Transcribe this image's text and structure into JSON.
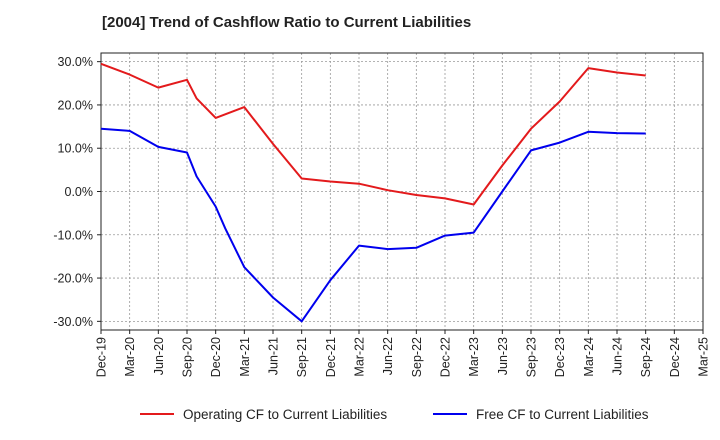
{
  "chart_data": {
    "type": "line",
    "title": "[2004]  Trend of Cashflow Ratio to Current Liabilities",
    "xlabel": "",
    "ylabel": "",
    "ylim": [
      -32,
      32
    ],
    "y_ticks": [
      30,
      20,
      10,
      0,
      -10,
      -20,
      -30
    ],
    "y_tick_labels": [
      "30.0%",
      "20.0%",
      "10.0%",
      "0.0%",
      "-10.0%",
      "-20.0%",
      "-30.0%"
    ],
    "x_tick_labels": [
      "Dec-19",
      "Mar-20",
      "Jun-20",
      "Sep-20",
      "Dec-20",
      "Mar-21",
      "Jun-21",
      "Sep-21",
      "Dec-21",
      "Mar-22",
      "Jun-22",
      "Sep-22",
      "Dec-22",
      "Mar-23",
      "Jun-23",
      "Sep-23",
      "Dec-23",
      "Mar-24",
      "Jun-24",
      "Sep-24",
      "Dec-24",
      "Mar-25"
    ],
    "grid": true,
    "legend_position": "bottom",
    "series": [
      {
        "name": "Operating CF to Current Liabilities",
        "color": "#e31a1c",
        "points": [
          {
            "x": "Dec-19",
            "y": 29.5
          },
          {
            "x": "Mar-20",
            "y": 27.0
          },
          {
            "x": "Jun-20",
            "y": 24.0
          },
          {
            "x": "Sep-20",
            "y": 25.8
          },
          {
            "x": "Oct-20",
            "y": 21.5
          },
          {
            "x": "Dec-20",
            "y": 17.0
          },
          {
            "x": "Mar-21",
            "y": 19.5
          },
          {
            "x": "Jun-21",
            "y": 11.0
          },
          {
            "x": "Sep-21",
            "y": 3.0
          },
          {
            "x": "Dec-21",
            "y": 2.3
          },
          {
            "x": "Mar-22",
            "y": 1.8
          },
          {
            "x": "Jun-22",
            "y": 0.3
          },
          {
            "x": "Sep-22",
            "y": -0.8
          },
          {
            "x": "Dec-22",
            "y": -1.6
          },
          {
            "x": "Mar-23",
            "y": -3.0
          },
          {
            "x": "Jun-23",
            "y": 6.0
          },
          {
            "x": "Sep-23",
            "y": 14.5
          },
          {
            "x": "Dec-23",
            "y": 20.8
          },
          {
            "x": "Mar-24",
            "y": 28.5
          },
          {
            "x": "Jun-24",
            "y": 27.5
          },
          {
            "x": "Sep-24",
            "y": 26.8
          }
        ]
      },
      {
        "name": "Free CF to Current Liabilities",
        "color": "#0000ee",
        "points": [
          {
            "x": "Dec-19",
            "y": 14.5
          },
          {
            "x": "Mar-20",
            "y": 14.0
          },
          {
            "x": "Jun-20",
            "y": 10.3
          },
          {
            "x": "Sep-20",
            "y": 9.0
          },
          {
            "x": "Oct-20",
            "y": 3.5
          },
          {
            "x": "Dec-20",
            "y": -3.5
          },
          {
            "x": "Jan-21",
            "y": -8.5
          },
          {
            "x": "Mar-21",
            "y": -17.5
          },
          {
            "x": "Jun-21",
            "y": -24.5
          },
          {
            "x": "Sep-21",
            "y": -30.0
          },
          {
            "x": "Dec-21",
            "y": -20.5
          },
          {
            "x": "Mar-22",
            "y": -12.5
          },
          {
            "x": "Jun-22",
            "y": -13.3
          },
          {
            "x": "Sep-22",
            "y": -13.0
          },
          {
            "x": "Dec-22",
            "y": -10.2
          },
          {
            "x": "Mar-23",
            "y": -9.5
          },
          {
            "x": "Jun-23",
            "y": 0.0
          },
          {
            "x": "Sep-23",
            "y": 9.5
          },
          {
            "x": "Dec-23",
            "y": 11.3
          },
          {
            "x": "Mar-24",
            "y": 13.8
          },
          {
            "x": "Jun-24",
            "y": 13.5
          },
          {
            "x": "Sep-24",
            "y": 13.4
          }
        ]
      }
    ]
  }
}
